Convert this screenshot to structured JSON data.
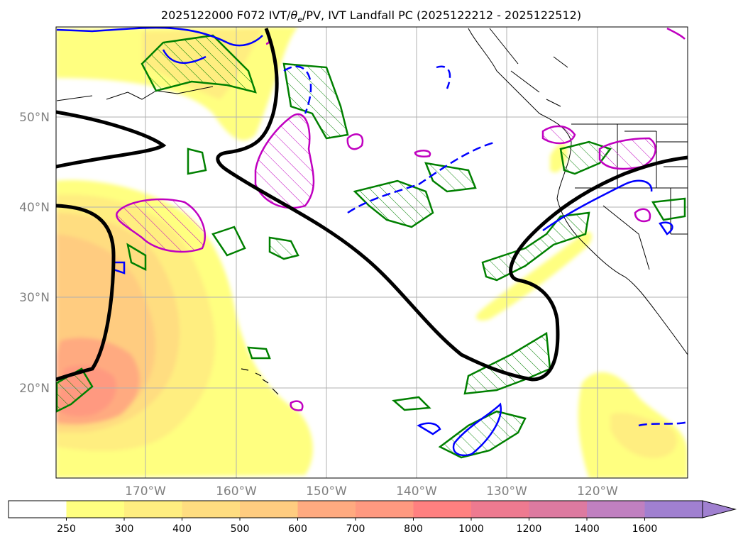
{
  "title": {
    "run": "2025122000 F072 IVT/",
    "symbol": "θ",
    "symbol_sub": "e",
    "rest": "/PV, IVT Landfall PC (2025122212 - 2025122512)"
  },
  "map": {
    "lon_range": [
      -180,
      -110
    ],
    "lat_range": [
      10,
      60
    ],
    "lat_ticks": [
      {
        "value": 50,
        "label": "50°N"
      },
      {
        "value": 40,
        "label": "40°N"
      },
      {
        "value": 30,
        "label": "30°N"
      },
      {
        "value": 20,
        "label": "20°N"
      }
    ],
    "lon_ticks": [
      {
        "value": -170,
        "label": "170°W"
      },
      {
        "value": -160,
        "label": "160°W"
      },
      {
        "value": -150,
        "label": "150°W"
      },
      {
        "value": -140,
        "label": "140°W"
      },
      {
        "value": -130,
        "label": "130°W"
      },
      {
        "value": -120,
        "label": "120°W"
      }
    ],
    "grid": true,
    "tick_label_color": "#808080"
  },
  "colorbar": {
    "levels": [
      "250",
      "300",
      "400",
      "500",
      "600",
      "700",
      "800",
      "1000",
      "1200",
      "1400",
      "1600"
    ],
    "colors": [
      "#ffffff",
      "#ffff80",
      "#ffee80",
      "#ffdd80",
      "#ffcc80",
      "#ffaa80",
      "#ff9980",
      "#ff8080",
      "#ee7a90",
      "#dd7aa0",
      "#c080c0",
      "#a080d0"
    ],
    "extend": "max"
  },
  "colors": {
    "ivt_contour_line": "#000000",
    "pv_contour": "#008000",
    "theta_e_contour": "#0000ff",
    "landfall_pc_contour": "#c000c0",
    "coastline": "#000000"
  }
}
